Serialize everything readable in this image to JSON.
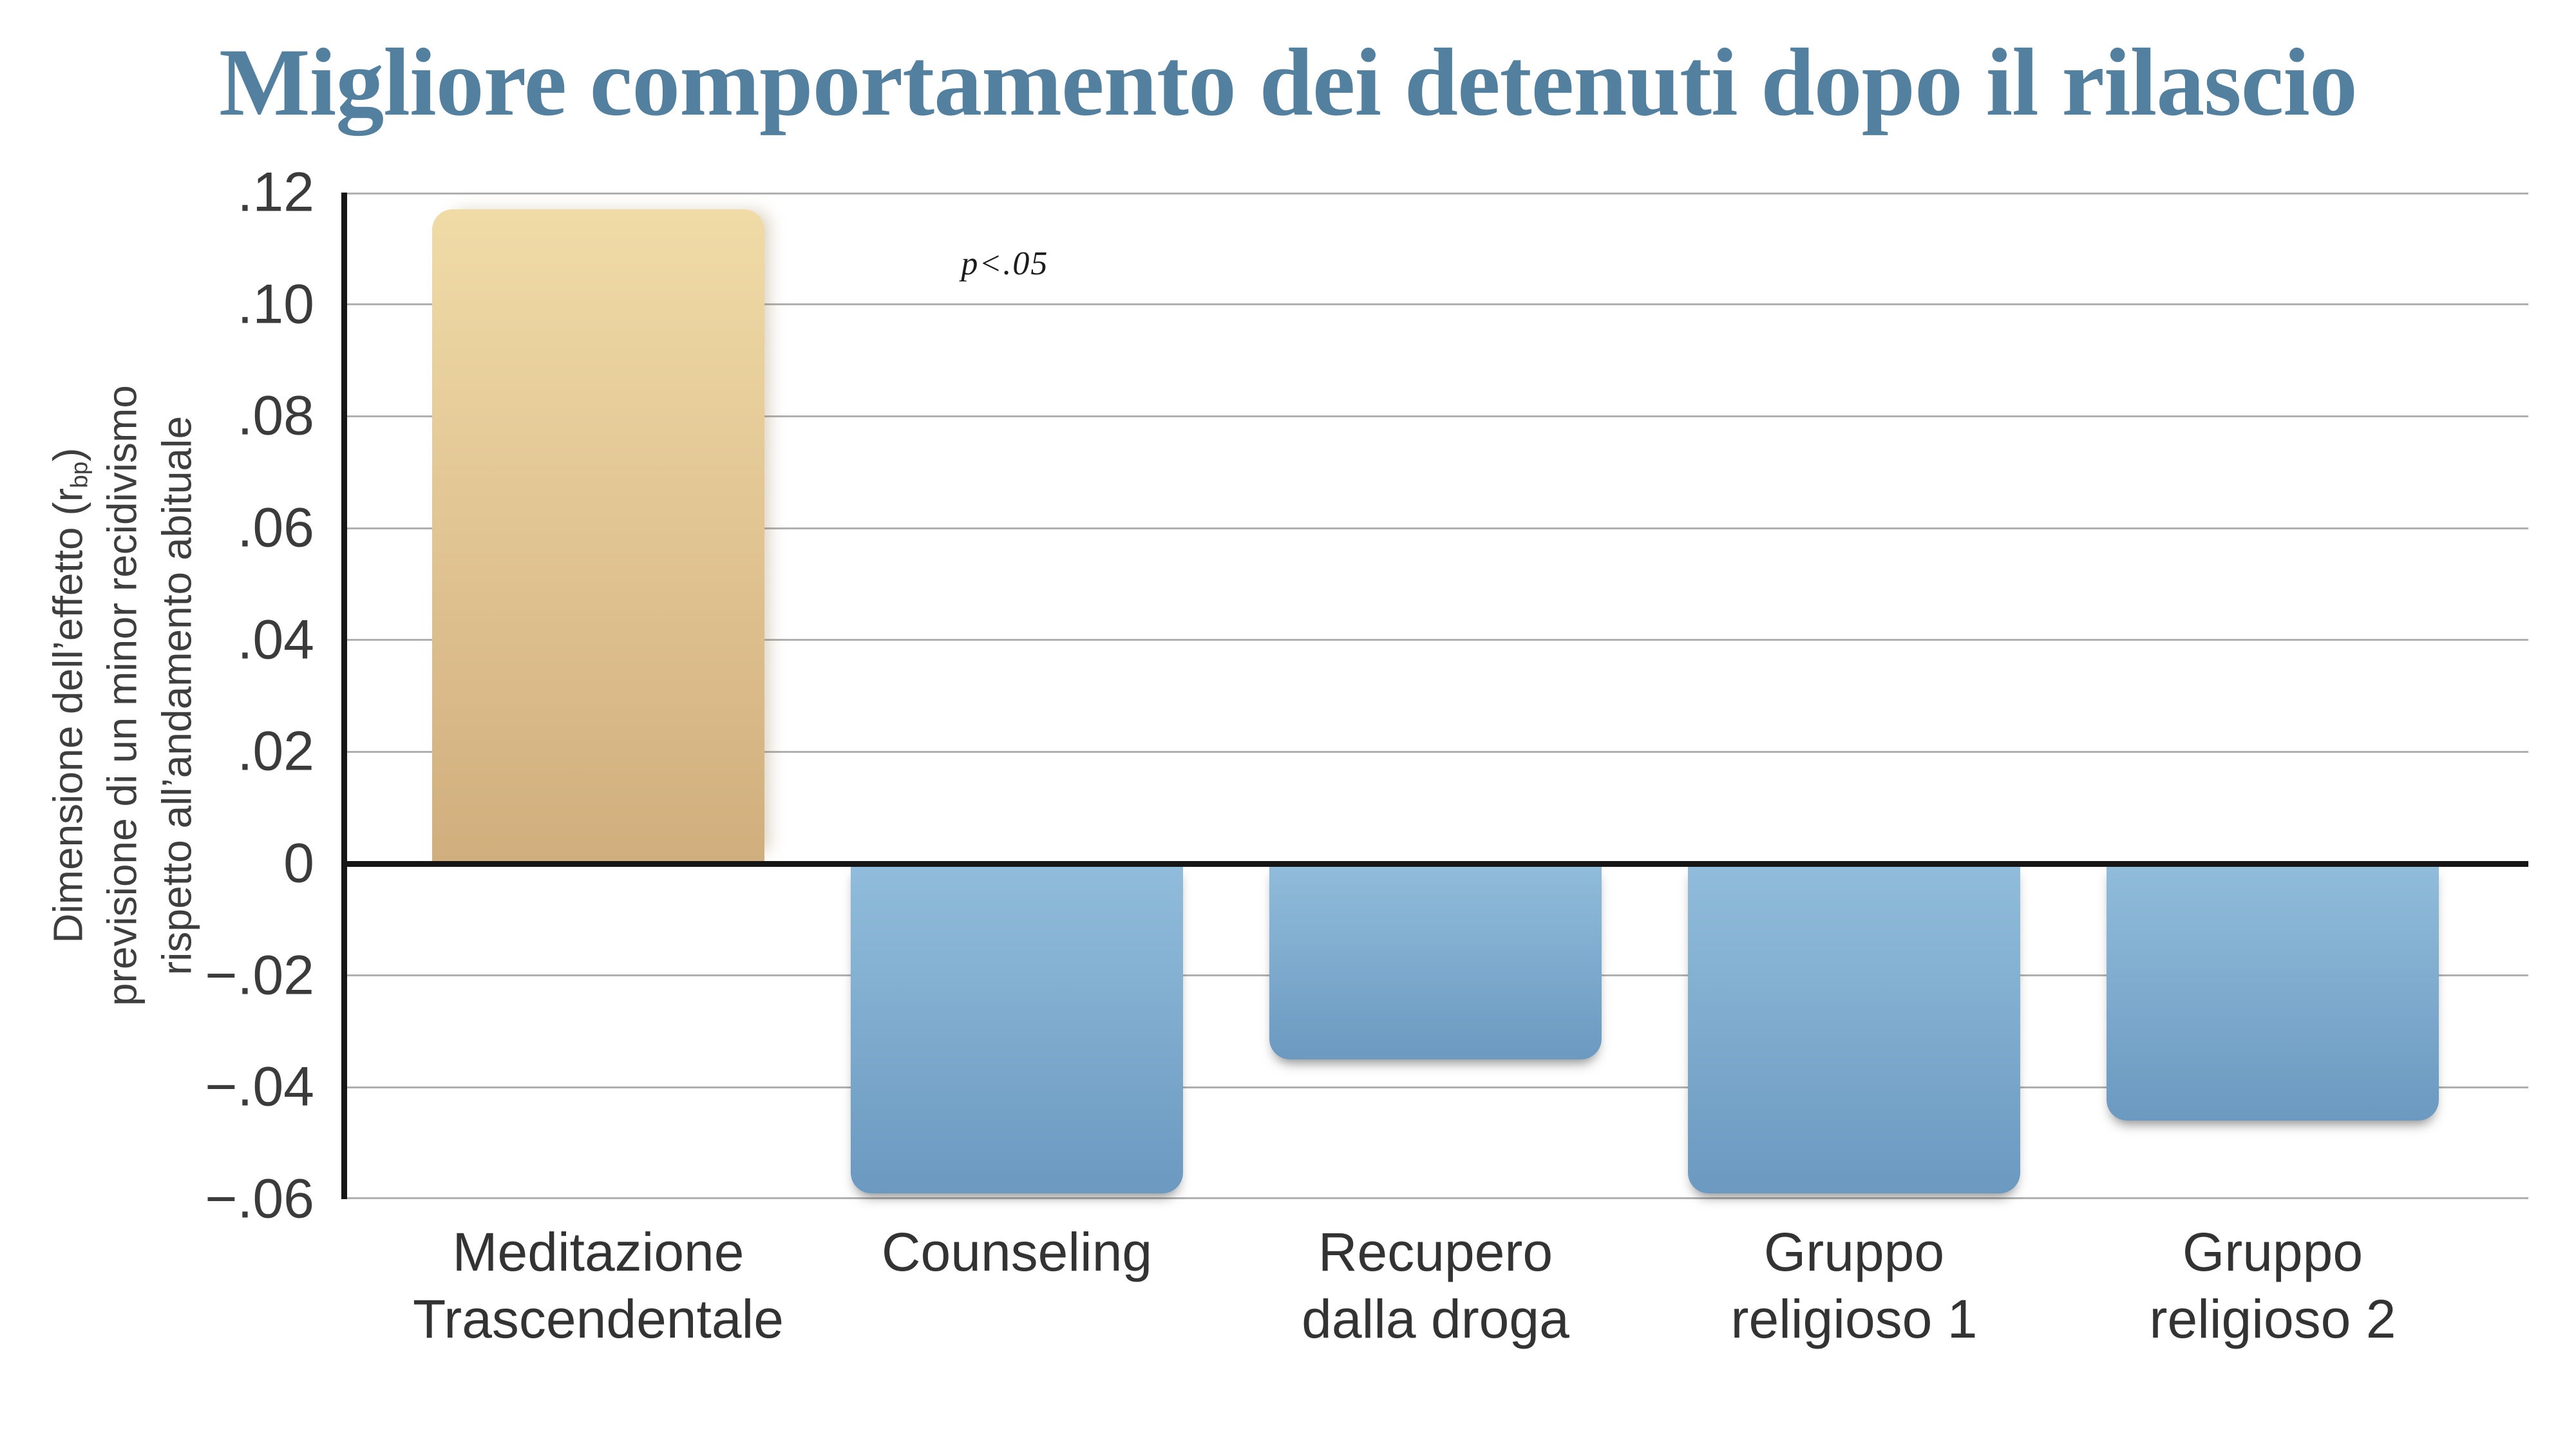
{
  "title": "Migliore comportamento dei detenuti dopo il rilascio",
  "annotation": {
    "text": "p<.05"
  },
  "y_axis": {
    "label_line1_pre": "Dimensione dell’effetto (r",
    "label_line1_sub": "bp",
    "label_line1_post": ")",
    "label_line2": "previsione di un minor recidivismo",
    "label_line3": "rispetto all’andamento abituale",
    "ticks": [
      ".12",
      ".10",
      ".08",
      ".06",
      ".04",
      ".02",
      "0",
      "−.02",
      "−.04",
      "−.06"
    ]
  },
  "chart_data": {
    "type": "bar",
    "title": "Migliore comportamento dei detenuti dopo il rilascio",
    "categories": [
      "Meditazione Trascendentale",
      "Counseling",
      "Recupero dalla droga",
      "Gruppo religioso 1",
      "Gruppo religioso 2"
    ],
    "category_lines": [
      [
        "Meditazione",
        "Trascendentale"
      ],
      [
        "Counseling"
      ],
      [
        "Recupero",
        "dalla droga"
      ],
      [
        "Gruppo",
        "religioso 1"
      ],
      [
        "Gruppo",
        "religioso 2"
      ]
    ],
    "values": [
      0.117,
      -0.059,
      -0.035,
      -0.059,
      -0.046
    ],
    "xlabel": "",
    "ylabel": "Dimensione dell’effetto (rbp) previsione di un minor recidivismo rispetto all’andamento abituale",
    "ylim": [
      -0.06,
      0.12
    ],
    "ytick_step": 0.02,
    "grid": true,
    "legend_position": "none",
    "annotation": "p<.05"
  },
  "colors": {
    "title": "#54809f",
    "positive_bar_top": "#f0dba7",
    "positive_bar_bottom": "#d1ae7d",
    "negative_bar_top": "#91bcdb",
    "negative_bar_bottom": "#6b99c0",
    "gridline": "#b0b0b0",
    "axis": "#161616",
    "tick_text": "#3b3b3b",
    "label_text": "#333333"
  }
}
